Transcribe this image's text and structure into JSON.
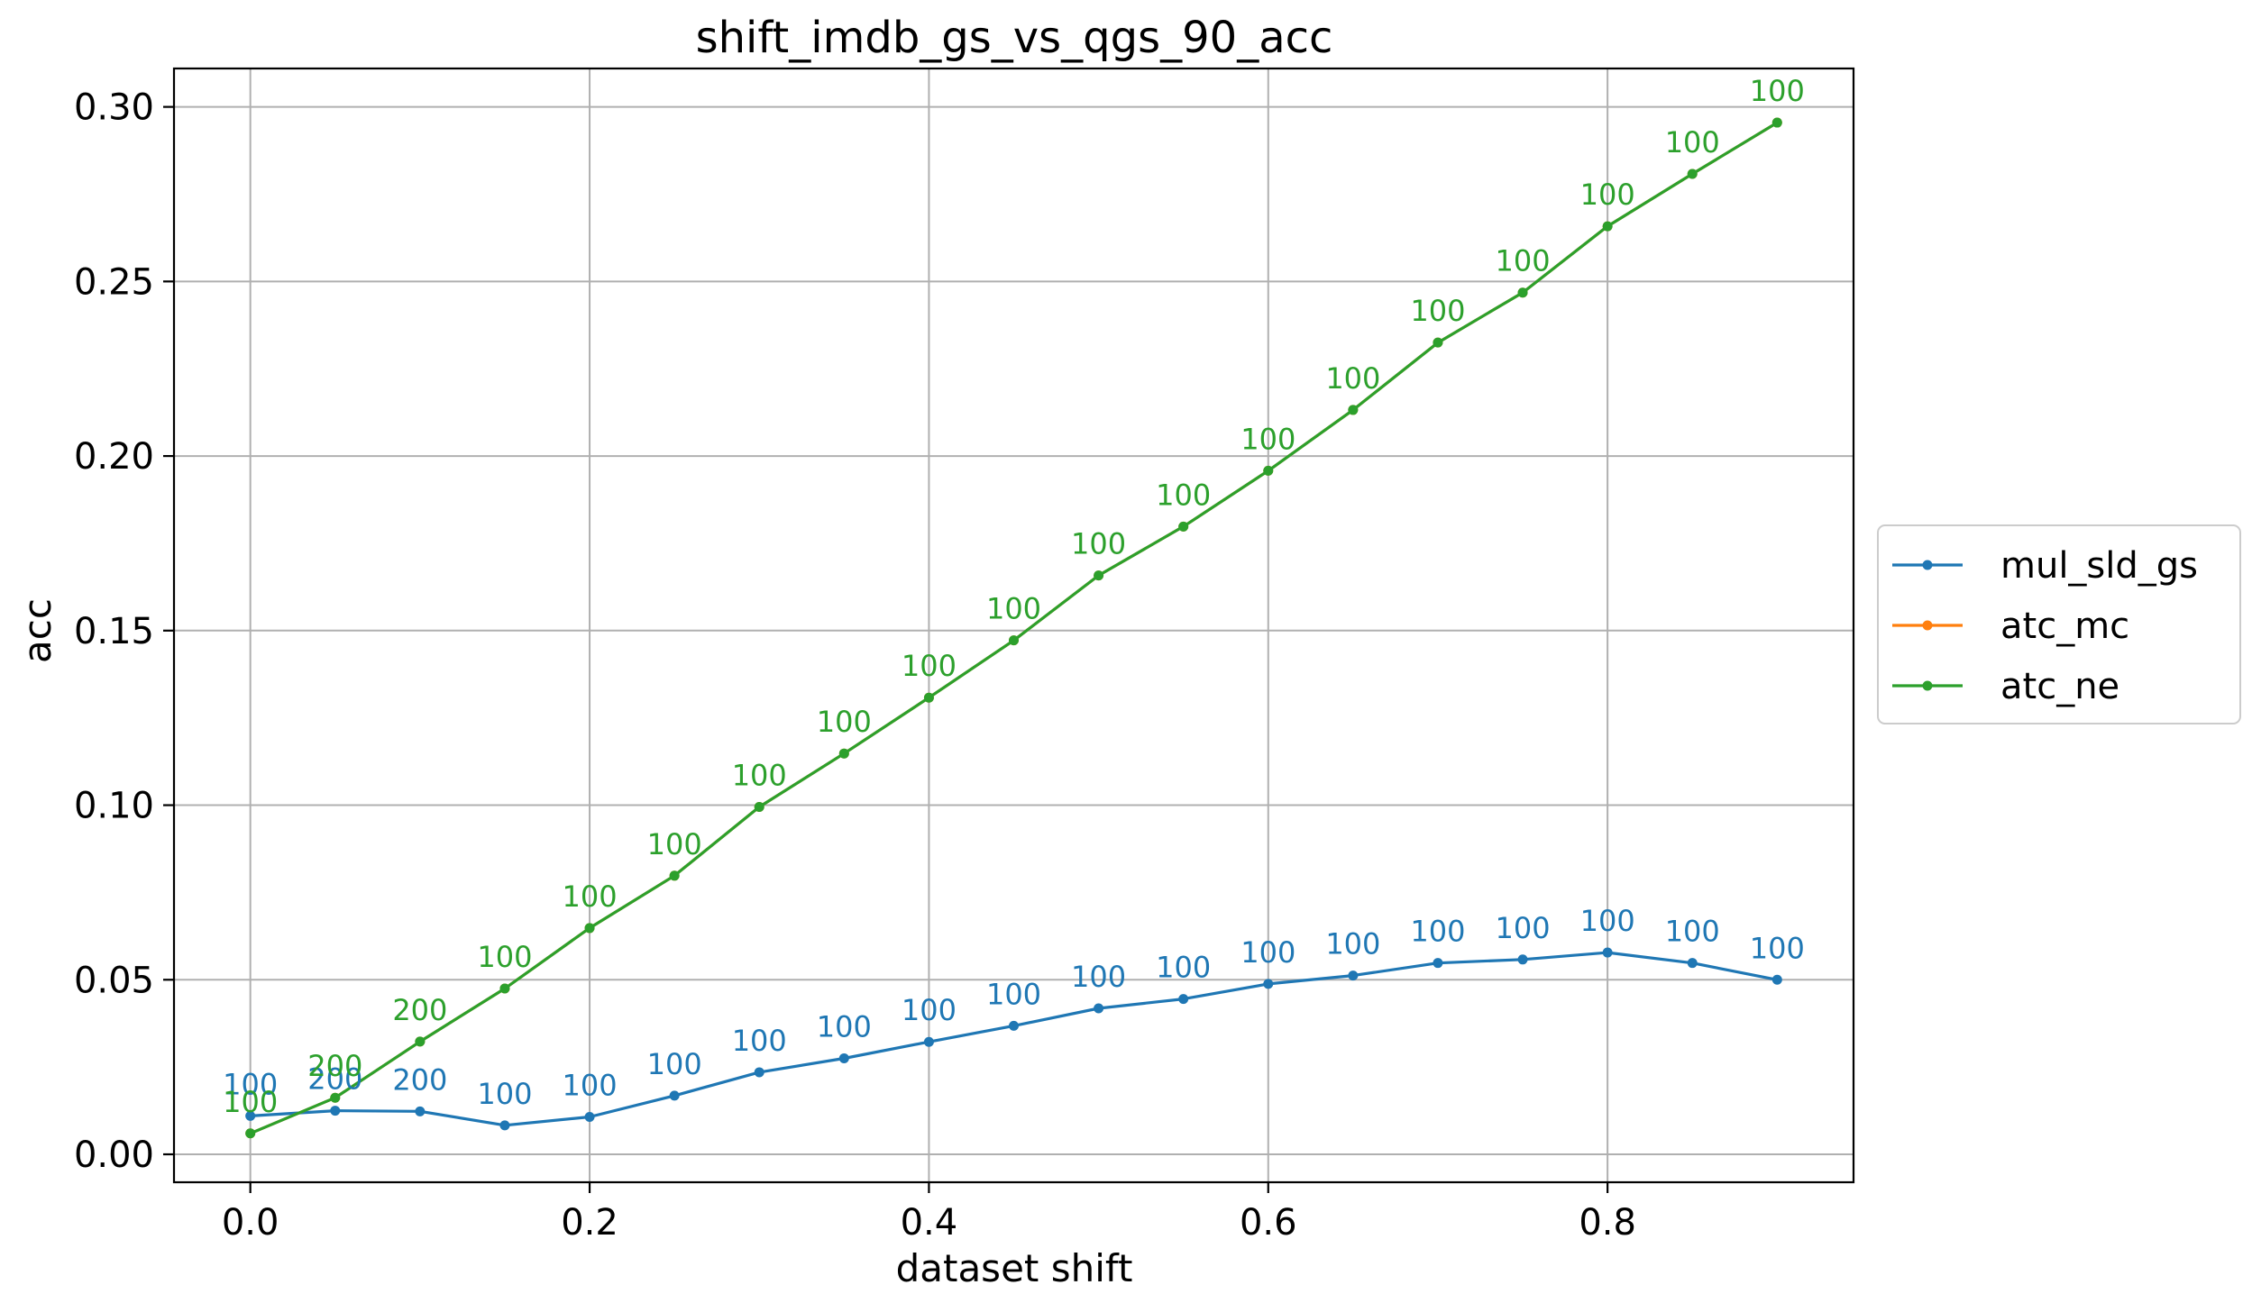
{
  "chart_data": {
    "type": "line",
    "title": "shift_imdb_gs_vs_qgs_90_acc",
    "xlabel": "dataset shift",
    "ylabel": "acc",
    "xlim": [
      -0.045,
      0.945
    ],
    "ylim": [
      -0.008,
      0.311
    ],
    "grid": true,
    "legend_position": "right, outside plot",
    "x_ticks": [
      0.0,
      0.2,
      0.4,
      0.6,
      0.8
    ],
    "x_tick_labels": [
      "0.0",
      "0.2",
      "0.4",
      "0.6",
      "0.8"
    ],
    "y_ticks": [
      0.0,
      0.05,
      0.1,
      0.15,
      0.2,
      0.25,
      0.3
    ],
    "y_tick_labels": [
      "0.00",
      "0.05",
      "0.10",
      "0.15",
      "0.20",
      "0.25",
      "0.30"
    ],
    "x": [
      0.0,
      0.05,
      0.1,
      0.15,
      0.2,
      0.25,
      0.3,
      0.35,
      0.4,
      0.45,
      0.5,
      0.55,
      0.6,
      0.65,
      0.7,
      0.75,
      0.8,
      0.85,
      0.9
    ],
    "series": [
      {
        "name": "mul_sld_gs",
        "color": "#1f77b4",
        "values": [
          0.011,
          0.0125,
          0.0123,
          0.0083,
          0.0107,
          0.0168,
          0.0235,
          0.0275,
          0.0322,
          0.0368,
          0.0418,
          0.0445,
          0.0488,
          0.0512,
          0.0548,
          0.0558,
          0.0578,
          0.0548,
          0.05
        ],
        "labels": [
          "100",
          "200",
          "200",
          "100",
          "100",
          "100",
          "100",
          "100",
          "100",
          "100",
          "100",
          "100",
          "100",
          "100",
          "100",
          "100",
          "100",
          "100",
          "100"
        ]
      },
      {
        "name": "atc_mc",
        "color": "#ff7f0e",
        "values": [
          0.006,
          0.0162,
          0.0323,
          0.0475,
          0.0648,
          0.0798,
          0.0995,
          0.1148,
          0.1308,
          0.1472,
          0.1658,
          0.1798,
          0.1958,
          0.2132,
          0.2325,
          0.2468,
          0.2658,
          0.2808,
          0.2955
        ],
        "labels": []
      },
      {
        "name": "atc_ne",
        "color": "#2ca02c",
        "values": [
          0.006,
          0.0162,
          0.0323,
          0.0475,
          0.0648,
          0.0798,
          0.0995,
          0.1148,
          0.1308,
          0.1472,
          0.1658,
          0.1798,
          0.1958,
          0.2132,
          0.2325,
          0.2468,
          0.2658,
          0.2808,
          0.2955
        ],
        "labels": [
          "100",
          "200",
          "200",
          "100",
          "100",
          "100",
          "100",
          "100",
          "100",
          "100",
          "100",
          "100",
          "100",
          "100",
          "100",
          "100",
          "100",
          "100",
          "100"
        ]
      }
    ]
  }
}
